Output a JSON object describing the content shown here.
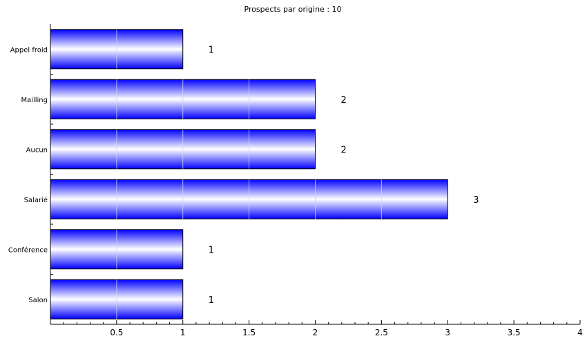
{
  "chart_data": {
    "type": "bar",
    "orientation": "horizontal",
    "title": "Prospects par origine : 10",
    "categories": [
      "Appel froid",
      "Mailling",
      "Aucun",
      "Salarié",
      "Conférence",
      "Salon"
    ],
    "values": [
      1,
      2,
      2,
      3,
      1,
      1
    ],
    "data_labels": [
      "1",
      "2",
      "2",
      "3",
      "1",
      "1"
    ],
    "xlim": [
      0,
      4
    ],
    "xticks": [
      0.5,
      1,
      1.5,
      2,
      2.5,
      3,
      3.5,
      4
    ],
    "xtick_labels": [
      "0.5",
      "1",
      "1.5",
      "2",
      "2.5",
      "3",
      "3.5",
      "4"
    ],
    "xlabel": "",
    "ylabel": "",
    "grid": false,
    "bar_color": "#0000ff",
    "bar_highlight_color": "#ffffff"
  }
}
